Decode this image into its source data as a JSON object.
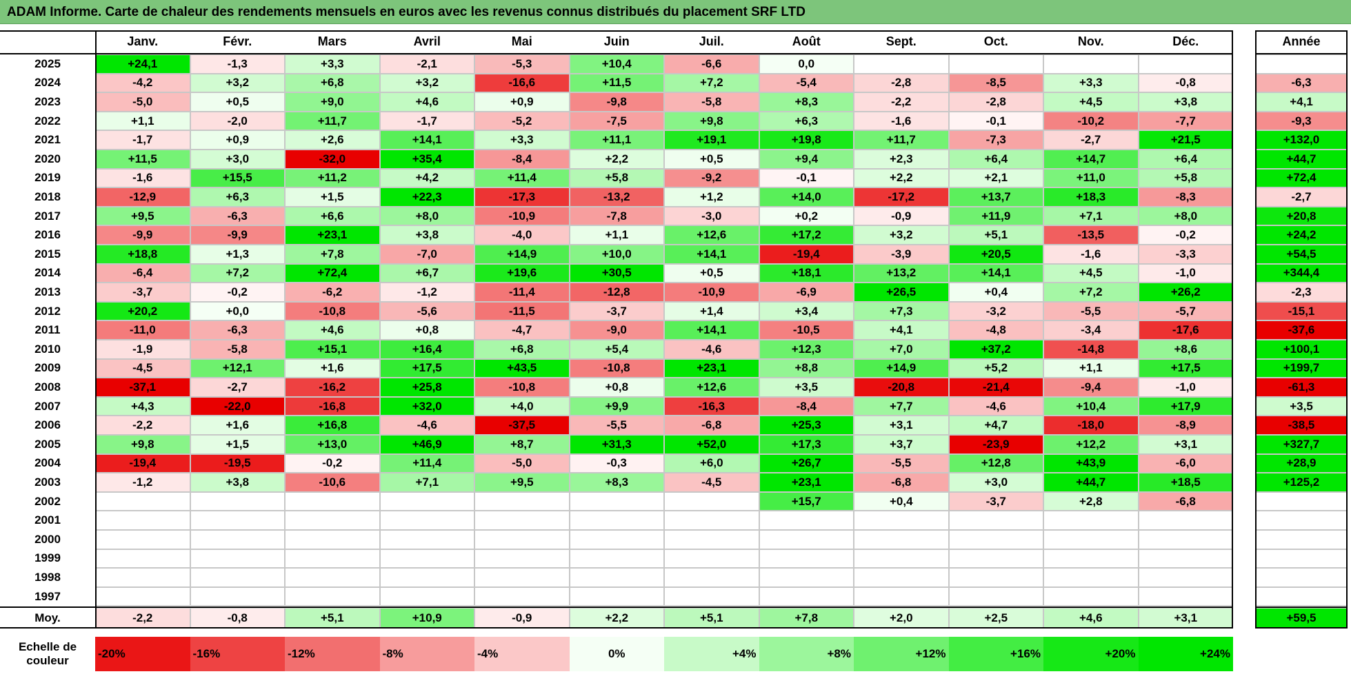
{
  "title": "ADAM Informe. Carte de chaleur des rendements mensuels en euros avec les revenus connus distribués du placement SRF LTD",
  "chart_data": {
    "type": "heatmap",
    "columns": [
      "Janv.",
      "Févr.",
      "Mars",
      "Avril",
      "Mai",
      "Juin",
      "Juil.",
      "Août",
      "Sept.",
      "Oct.",
      "Nov.",
      "Déc."
    ],
    "year_column": "Année",
    "rows": [
      {
        "year": "2025",
        "values": [
          "+24,1",
          "-1,3",
          "+3,3",
          "-2,1",
          "-5,3",
          "+10,4",
          "-6,6",
          "0,0",
          "",
          "",
          "",
          ""
        ],
        "annual": ""
      },
      {
        "year": "2024",
        "values": [
          "-4,2",
          "+3,2",
          "+6,8",
          "+3,2",
          "-16,6",
          "+11,5",
          "+7,2",
          "-5,4",
          "-2,8",
          "-8,5",
          "+3,3",
          "-0,8"
        ],
        "annual": "-6,3"
      },
      {
        "year": "2023",
        "values": [
          "-5,0",
          "+0,5",
          "+9,0",
          "+4,6",
          "+0,9",
          "-9,8",
          "-5,8",
          "+8,3",
          "-2,2",
          "-2,8",
          "+4,5",
          "+3,8"
        ],
        "annual": "+4,1"
      },
      {
        "year": "2022",
        "values": [
          "+1,1",
          "-2,0",
          "+11,7",
          "-1,7",
          "-5,2",
          "-7,5",
          "+9,8",
          "+6,3",
          "-1,6",
          "-0,1",
          "-10,2",
          "-7,7"
        ],
        "annual": "-9,3"
      },
      {
        "year": "2021",
        "values": [
          "-1,7",
          "+0,9",
          "+2,6",
          "+14,1",
          "+3,3",
          "+11,1",
          "+19,1",
          "+19,8",
          "+11,7",
          "-7,3",
          "-2,7",
          "+21,5"
        ],
        "annual": "+132,0"
      },
      {
        "year": "2020",
        "values": [
          "+11,5",
          "+3,0",
          "-32,0",
          "+35,4",
          "-8,4",
          "+2,2",
          "+0,5",
          "+9,4",
          "+2,3",
          "+6,4",
          "+14,7",
          "+6,4"
        ],
        "annual": "+44,7"
      },
      {
        "year": "2019",
        "values": [
          "-1,6",
          "+15,5",
          "+11,2",
          "+4,2",
          "+11,4",
          "+5,8",
          "-9,2",
          "-0,1",
          "+2,2",
          "+2,1",
          "+11,0",
          "+5,8"
        ],
        "annual": "+72,4"
      },
      {
        "year": "2018",
        "values": [
          "-12,9",
          "+6,3",
          "+1,5",
          "+22,3",
          "-17,3",
          "-13,2",
          "+1,2",
          "+14,0",
          "-17,2",
          "+13,7",
          "+18,3",
          "-8,3"
        ],
        "annual": "-2,7"
      },
      {
        "year": "2017",
        "values": [
          "+9,5",
          "-6,3",
          "+6,6",
          "+8,0",
          "-10,9",
          "-7,8",
          "-3,0",
          "+0,2",
          "-0,9",
          "+11,9",
          "+7,1",
          "+8,0"
        ],
        "annual": "+20,8"
      },
      {
        "year": "2016",
        "values": [
          "-9,9",
          "-9,9",
          "+23,1",
          "+3,8",
          "-4,0",
          "+1,1",
          "+12,6",
          "+17,2",
          "+3,2",
          "+5,1",
          "-13,5",
          "-0,2"
        ],
        "annual": "+24,2"
      },
      {
        "year": "2015",
        "values": [
          "+18,8",
          "+1,3",
          "+7,8",
          "-7,0",
          "+14,9",
          "+10,0",
          "+14,1",
          "-19,4",
          "-3,9",
          "+20,5",
          "-1,6",
          "-3,3"
        ],
        "annual": "+54,5"
      },
      {
        "year": "2014",
        "values": [
          "-6,4",
          "+7,2",
          "+72,4",
          "+6,7",
          "+19,6",
          "+30,5",
          "+0,5",
          "+18,1",
          "+13,2",
          "+14,1",
          "+4,5",
          "-1,0"
        ],
        "annual": "+344,4"
      },
      {
        "year": "2013",
        "values": [
          "-3,7",
          "-0,2",
          "-6,2",
          "-1,2",
          "-11,4",
          "-12,8",
          "-10,9",
          "-6,9",
          "+26,5",
          "+0,4",
          "+7,2",
          "+26,2"
        ],
        "annual": "-2,3"
      },
      {
        "year": "2012",
        "values": [
          "+20,2",
          "+0,0",
          "-10,8",
          "-5,6",
          "-11,5",
          "-3,7",
          "+1,4",
          "+3,4",
          "+7,3",
          "-3,2",
          "-5,5",
          "-5,7"
        ],
        "annual": "-15,1"
      },
      {
        "year": "2011",
        "values": [
          "-11,0",
          "-6,3",
          "+4,6",
          "+0,8",
          "-4,7",
          "-9,0",
          "+14,1",
          "-10,5",
          "+4,1",
          "-4,8",
          "-3,4",
          "-17,6"
        ],
        "annual": "-37,6"
      },
      {
        "year": "2010",
        "values": [
          "-1,9",
          "-5,8",
          "+15,1",
          "+16,4",
          "+6,8",
          "+5,4",
          "-4,6",
          "+12,3",
          "+7,0",
          "+37,2",
          "-14,8",
          "+8,6"
        ],
        "annual": "+100,1"
      },
      {
        "year": "2009",
        "values": [
          "-4,5",
          "+12,1",
          "+1,6",
          "+17,5",
          "+43,5",
          "-10,8",
          "+23,1",
          "+8,8",
          "+14,9",
          "+5,2",
          "+1,1",
          "+17,5"
        ],
        "annual": "+199,7"
      },
      {
        "year": "2008",
        "values": [
          "-37,1",
          "-2,7",
          "-16,2",
          "+25,8",
          "-10,8",
          "+0,8",
          "+12,6",
          "+3,5",
          "-20,8",
          "-21,4",
          "-9,4",
          "-1,0"
        ],
        "annual": "-61,3"
      },
      {
        "year": "2007",
        "values": [
          "+4,3",
          "-22,0",
          "-16,8",
          "+32,0",
          "+4,0",
          "+9,9",
          "-16,3",
          "-8,4",
          "+7,7",
          "-4,6",
          "+10,4",
          "+17,9"
        ],
        "annual": "+3,5"
      },
      {
        "year": "2006",
        "values": [
          "-2,2",
          "+1,6",
          "+16,8",
          "-4,6",
          "-37,5",
          "-5,5",
          "-6,8",
          "+25,3",
          "+3,1",
          "+4,7",
          "-18,0",
          "-8,9"
        ],
        "annual": "-38,5"
      },
      {
        "year": "2005",
        "values": [
          "+9,8",
          "+1,5",
          "+13,0",
          "+46,9",
          "+8,7",
          "+31,3",
          "+52,0",
          "+17,3",
          "+3,7",
          "-23,9",
          "+12,2",
          "+3,1"
        ],
        "annual": "+327,7"
      },
      {
        "year": "2004",
        "values": [
          "-19,4",
          "-19,5",
          "-0,2",
          "+11,4",
          "-5,0",
          "-0,3",
          "+6,0",
          "+26,7",
          "-5,5",
          "+12,8",
          "+43,9",
          "-6,0"
        ],
        "annual": "+28,9"
      },
      {
        "year": "2003",
        "values": [
          "-1,2",
          "+3,8",
          "-10,6",
          "+7,1",
          "+9,5",
          "+8,3",
          "-4,5",
          "+23,1",
          "-6,8",
          "+3,0",
          "+44,7",
          "+18,5"
        ],
        "annual": "+125,2"
      },
      {
        "year": "2002",
        "values": [
          "",
          "",
          "",
          "",
          "",
          "",
          "",
          "+15,7",
          "+0,4",
          "-3,7",
          "+2,8",
          "-6,8"
        ],
        "annual": ""
      },
      {
        "year": "2001",
        "values": [
          "",
          "",
          "",
          "",
          "",
          "",
          "",
          "",
          "",
          "",
          "",
          ""
        ],
        "annual": ""
      },
      {
        "year": "2000",
        "values": [
          "",
          "",
          "",
          "",
          "",
          "",
          "",
          "",
          "",
          "",
          "",
          ""
        ],
        "annual": ""
      },
      {
        "year": "1999",
        "values": [
          "",
          "",
          "",
          "",
          "",
          "",
          "",
          "",
          "",
          "",
          "",
          ""
        ],
        "annual": ""
      },
      {
        "year": "1998",
        "values": [
          "",
          "",
          "",
          "",
          "",
          "",
          "",
          "",
          "",
          "",
          "",
          ""
        ],
        "annual": ""
      },
      {
        "year": "1997",
        "values": [
          "",
          "",
          "",
          "",
          "",
          "",
          "",
          "",
          "",
          "",
          "",
          ""
        ],
        "annual": ""
      }
    ],
    "average": {
      "label": "Moy.",
      "values": [
        "-2,2",
        "-0,8",
        "+5,1",
        "+10,9",
        "-0,9",
        "+2,2",
        "+5,1",
        "+7,8",
        "+2,0",
        "+2,5",
        "+4,6",
        "+3,1"
      ],
      "annual": "+59,5"
    },
    "scale": {
      "label": "Echelle de couleur",
      "stops": [
        "-20%",
        "-16%",
        "-12%",
        "-8%",
        "-4%",
        "0%",
        "+4%",
        "+8%",
        "+12%",
        "+16%",
        "+20%",
        "+24%"
      ]
    },
    "colors": {
      "title_bg": "#7dc57b",
      "negative_max": "#e60000",
      "neutral": "#ffffff",
      "positive_max": "#00e600"
    }
  }
}
